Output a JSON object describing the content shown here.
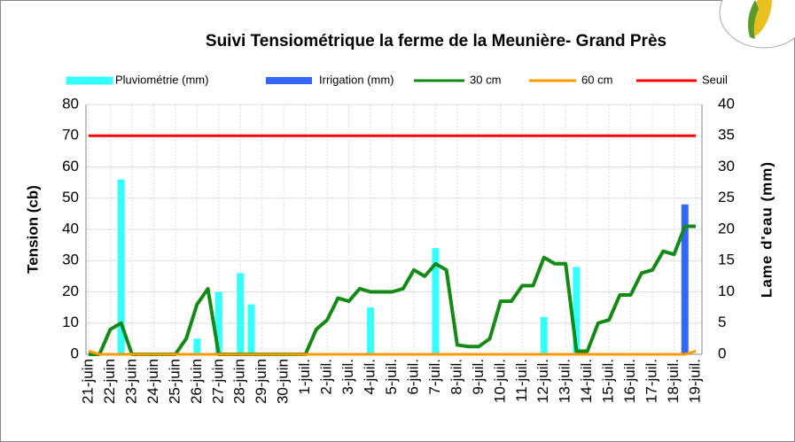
{
  "chart_data": {
    "type": "combo",
    "title": "Suivi Tensiométrique la ferme de la Meunière- Grand Près",
    "y_label": "Tension (cb)",
    "y2_label": "Lame d'eau (mm)",
    "categories": [
      "21-juin",
      null,
      "22-juin",
      null,
      "23-juin",
      null,
      "24-juin",
      null,
      "25-juin",
      null,
      "26-juin",
      null,
      "27-juin",
      null,
      "28-juin",
      null,
      "29-juin",
      null,
      "30-juin",
      null,
      "1-juil.",
      null,
      "2-juil.",
      null,
      "3-juil.",
      null,
      "4-juil.",
      null,
      "5-juil.",
      null,
      "6-juil.",
      null,
      "7-juil.",
      null,
      "8-juil.",
      null,
      "9-juil.",
      null,
      "10-juil.",
      null,
      "11-juil.",
      null,
      "12-juil.",
      null,
      "13-juil.",
      null,
      "14-juil.",
      null,
      "15-juil.",
      null,
      "16-juil.",
      null,
      "17-juil.",
      null,
      "18-juil.",
      null,
      "19-juil."
    ],
    "ylim": [
      0,
      80
    ],
    "yticks": [
      0,
      10,
      20,
      30,
      40,
      50,
      60,
      70,
      80
    ],
    "y2lim": [
      0,
      40
    ],
    "y2ticks": [
      0,
      5,
      10,
      15,
      20,
      25,
      30,
      35,
      40
    ],
    "grid": true,
    "series": [
      {
        "name": "Pluviométrie (mm)",
        "kind": "bar",
        "axis": "y2",
        "color": "#33ffff",
        "values": [
          null,
          null,
          null,
          28,
          null,
          null,
          null,
          null,
          null,
          null,
          2.5,
          null,
          10,
          null,
          13,
          8,
          null,
          null,
          null,
          null,
          null,
          null,
          null,
          null,
          null,
          null,
          7.5,
          null,
          null,
          null,
          null,
          null,
          17,
          null,
          null,
          null,
          null,
          null,
          null,
          null,
          null,
          null,
          6,
          null,
          null,
          14,
          null,
          null,
          null,
          null,
          null,
          null,
          null,
          null,
          null,
          null,
          null
        ]
      },
      {
        "name": "Irrigation (mm)",
        "kind": "bar",
        "axis": "y2",
        "color": "#3366ff",
        "values": [
          null,
          null,
          null,
          null,
          null,
          null,
          null,
          null,
          null,
          null,
          null,
          null,
          null,
          null,
          null,
          null,
          null,
          null,
          null,
          null,
          null,
          null,
          null,
          null,
          null,
          null,
          null,
          null,
          null,
          null,
          null,
          null,
          null,
          null,
          null,
          null,
          null,
          null,
          null,
          null,
          null,
          null,
          null,
          null,
          null,
          null,
          null,
          null,
          null,
          null,
          null,
          null,
          null,
          null,
          null,
          24,
          null
        ]
      },
      {
        "name": "30 cm",
        "kind": "line",
        "axis": "y",
        "color": "#138a13",
        "values": [
          0,
          0,
          8,
          10,
          0,
          0,
          0,
          0,
          0,
          5,
          16,
          21,
          0,
          0,
          0,
          0,
          0,
          0,
          0,
          0,
          0,
          8,
          11,
          18,
          17,
          21,
          20,
          20,
          20,
          21,
          27,
          25,
          29,
          27,
          3,
          2.5,
          2.5,
          5,
          17,
          17,
          22,
          22,
          31,
          29,
          29,
          1,
          1,
          10,
          11,
          19,
          19,
          26,
          27,
          33,
          32,
          41,
          41
        ]
      },
      {
        "name": "60 cm",
        "kind": "line",
        "axis": "y",
        "color": "#ff9900",
        "values": [
          1,
          0,
          0,
          0,
          0,
          0,
          0,
          0,
          0,
          0,
          0,
          0,
          0,
          0,
          0,
          0,
          0,
          0,
          0,
          0,
          0,
          0,
          0,
          0,
          0,
          0,
          0,
          0,
          0,
          0,
          0,
          0,
          0,
          0,
          0,
          0,
          0,
          0,
          0,
          0,
          0,
          0,
          0,
          0,
          0,
          0,
          0,
          0,
          0,
          0,
          0,
          0,
          0,
          0,
          0,
          0,
          1
        ]
      },
      {
        "name": "Seuil",
        "kind": "line",
        "axis": "y",
        "color": "#ff0000",
        "values": [
          70,
          70,
          70,
          70,
          70,
          70,
          70,
          70,
          70,
          70,
          70,
          70,
          70,
          70,
          70,
          70,
          70,
          70,
          70,
          70,
          70,
          70,
          70,
          70,
          70,
          70,
          70,
          70,
          70,
          70,
          70,
          70,
          70,
          70,
          70,
          70,
          70,
          70,
          70,
          70,
          70,
          70,
          70,
          70,
          70,
          70,
          70,
          70,
          70,
          70,
          70,
          70,
          70,
          70,
          70,
          70,
          70
        ]
      }
    ]
  }
}
